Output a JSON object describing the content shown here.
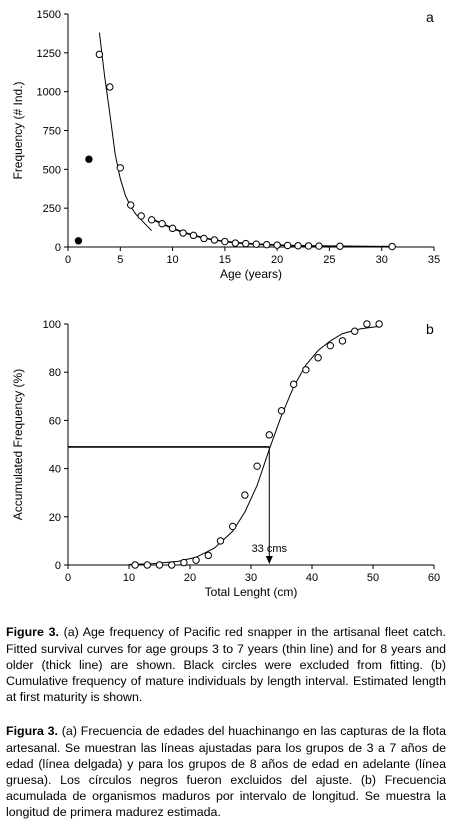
{
  "chart_data": [
    {
      "type": "scatter",
      "panel_label": "a",
      "xlabel": "Age (years)",
      "ylabel": "Frequency (# Ind.)",
      "xlim": [
        0,
        35
      ],
      "ylim": [
        0,
        1500
      ],
      "x_ticks": [
        0,
        5,
        10,
        15,
        20,
        25,
        30,
        35
      ],
      "y_ticks": [
        0,
        250,
        500,
        750,
        1000,
        1250,
        1500
      ],
      "series": [
        {
          "marker": "open-circle",
          "x": [
            3,
            4,
            5,
            6,
            7,
            8,
            9,
            10,
            11,
            12,
            13,
            14,
            15,
            16,
            17,
            18,
            19,
            20,
            21,
            22,
            23,
            24,
            26,
            31
          ],
          "y": [
            1240,
            1030,
            510,
            270,
            200,
            175,
            150,
            120,
            90,
            75,
            55,
            45,
            35,
            25,
            22,
            18,
            15,
            12,
            10,
            8,
            7,
            6,
            5,
            3
          ]
        },
        {
          "marker": "filled-circle",
          "x": [
            1,
            2
          ],
          "y": [
            40,
            565
          ]
        }
      ],
      "fit_lines": [
        {
          "style": "thin",
          "x": [
            3,
            3.5,
            4,
            4.5,
            5,
            5.5,
            6,
            6.5,
            7,
            7.5,
            8
          ],
          "y": [
            1380,
            1100,
            860,
            600,
            440,
            330,
            260,
            210,
            175,
            140,
            105
          ]
        },
        {
          "style": "thick",
          "x": [
            8,
            9,
            10,
            11,
            12,
            13,
            14,
            16,
            18,
            20,
            22,
            25,
            31
          ],
          "y": [
            180,
            150,
            120,
            95,
            75,
            58,
            45,
            28,
            18,
            12,
            8,
            5,
            2
          ]
        }
      ]
    },
    {
      "type": "scatter",
      "panel_label": "b",
      "xlabel": "Total Lenght (cm)",
      "ylabel": "Accumulated Frequency (%)",
      "xlim": [
        0,
        60
      ],
      "ylim": [
        0,
        100
      ],
      "x_ticks": [
        0,
        10,
        20,
        30,
        40,
        50,
        60
      ],
      "y_ticks": [
        0,
        20,
        40,
        60,
        80,
        100
      ],
      "series": [
        {
          "marker": "open-circle",
          "x": [
            11,
            13,
            15,
            17,
            19,
            21,
            23,
            25,
            27,
            29,
            31,
            33,
            35,
            37,
            39,
            41,
            43,
            45,
            47,
            49,
            51
          ],
          "y": [
            0,
            0,
            0,
            0,
            1,
            2,
            4,
            10,
            16,
            29,
            41,
            54,
            64,
            75,
            81,
            86,
            91,
            93,
            97,
            100,
            100
          ]
        }
      ],
      "fit_line": {
        "x": [
          10,
          14,
          18,
          21,
          24,
          27,
          29,
          31,
          33,
          35,
          37,
          39,
          41,
          43,
          45,
          48,
          51
        ],
        "y": [
          0.2,
          0.6,
          1.5,
          3.2,
          7,
          14,
          22,
          33,
          48,
          62,
          74,
          83,
          89,
          93,
          96,
          98,
          99
        ]
      },
      "reference": {
        "x": 33,
        "y": 49,
        "label": "33 cms"
      }
    }
  ],
  "caption_en": {
    "label": "Figure 3.",
    "text": " (a) Age frequency of Pacific red snapper in the artisanal fleet catch. Fitted survival curves for age groups 3 to 7 years (thin line) and for 8 years and older (thick line) are shown. Black circles were excluded from fitting. (b) Cumulative frequency of mature individuals by length interval. Estimated length at first maturity is shown."
  },
  "caption_es": {
    "label": "Figura 3.",
    "text": " (a) Frecuencia de edades del huachinango en las capturas de la flota artesanal. Se muestran las líneas ajustadas para los grupos de 3 a 7 años de edad (línea delgada) y para los grupos de 8 años de edad en adelante (línea gruesa). Los círculos negros fueron excluidos del ajuste. (b) Frecuencia acumulada de organismos maduros por intervalo de longitud. Se muestra la longitud de primera madurez estimada."
  }
}
